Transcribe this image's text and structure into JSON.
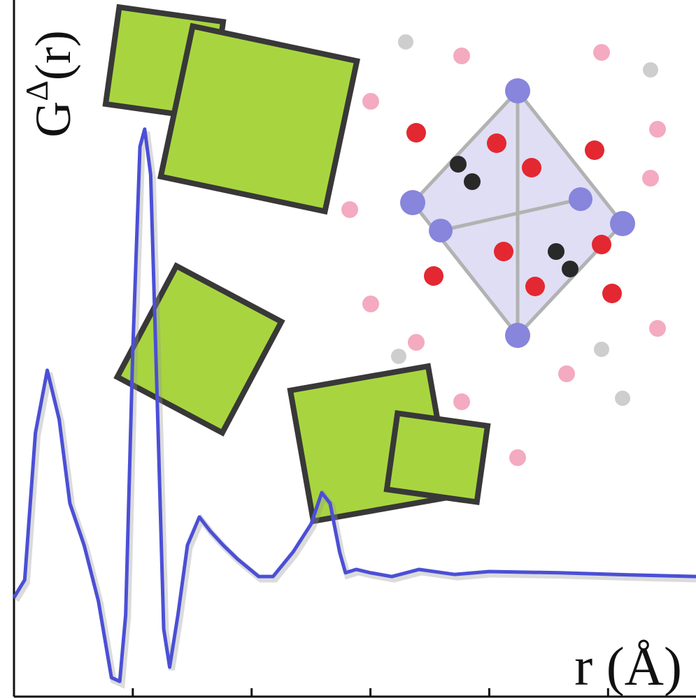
{
  "chart_data": {
    "type": "line",
    "ylabel": {
      "base": "G",
      "sup": "Δ",
      "rest": "(r)"
    },
    "xlabel": "r (Å)",
    "xlim": [
      0,
      5.74
    ],
    "ylim": [
      -2.75,
      13.83
    ],
    "xticks": [
      1,
      2,
      3,
      4,
      5
    ],
    "series": [
      {
        "color": "#4b4fd6",
        "x": [
          0,
          0.09,
          0.18,
          0.28,
          0.38,
          0.47,
          0.59,
          0.71,
          0.82,
          0.89,
          0.94,
          1.0,
          1.06,
          1.1,
          1.15,
          1.21,
          1.26,
          1.31,
          1.38,
          1.46,
          1.56,
          1.65,
          1.76,
          1.88,
          2.06,
          2.18,
          2.35,
          2.5,
          2.59,
          2.66,
          2.74,
          2.79,
          2.88,
          3.0,
          3.18,
          3.41,
          3.71,
          4.0,
          4.59,
          5.18,
          5.74
        ],
        "values": [
          -0.42,
          0,
          3.5,
          5,
          3.83,
          1.83,
          0.83,
          -0.5,
          -2.33,
          -2.42,
          -0.83,
          5.5,
          10.33,
          10.75,
          9.67,
          3.83,
          -1.17,
          -2.08,
          -0.83,
          0.83,
          1.5,
          1.17,
          0.83,
          0.5,
          0.08,
          0.08,
          0.67,
          1.33,
          2.08,
          1.83,
          0.67,
          0.17,
          0.25,
          0.17,
          0.08,
          0.25,
          0.13,
          0.2,
          0.17,
          0.12,
          0.08
        ]
      }
    ]
  }
}
